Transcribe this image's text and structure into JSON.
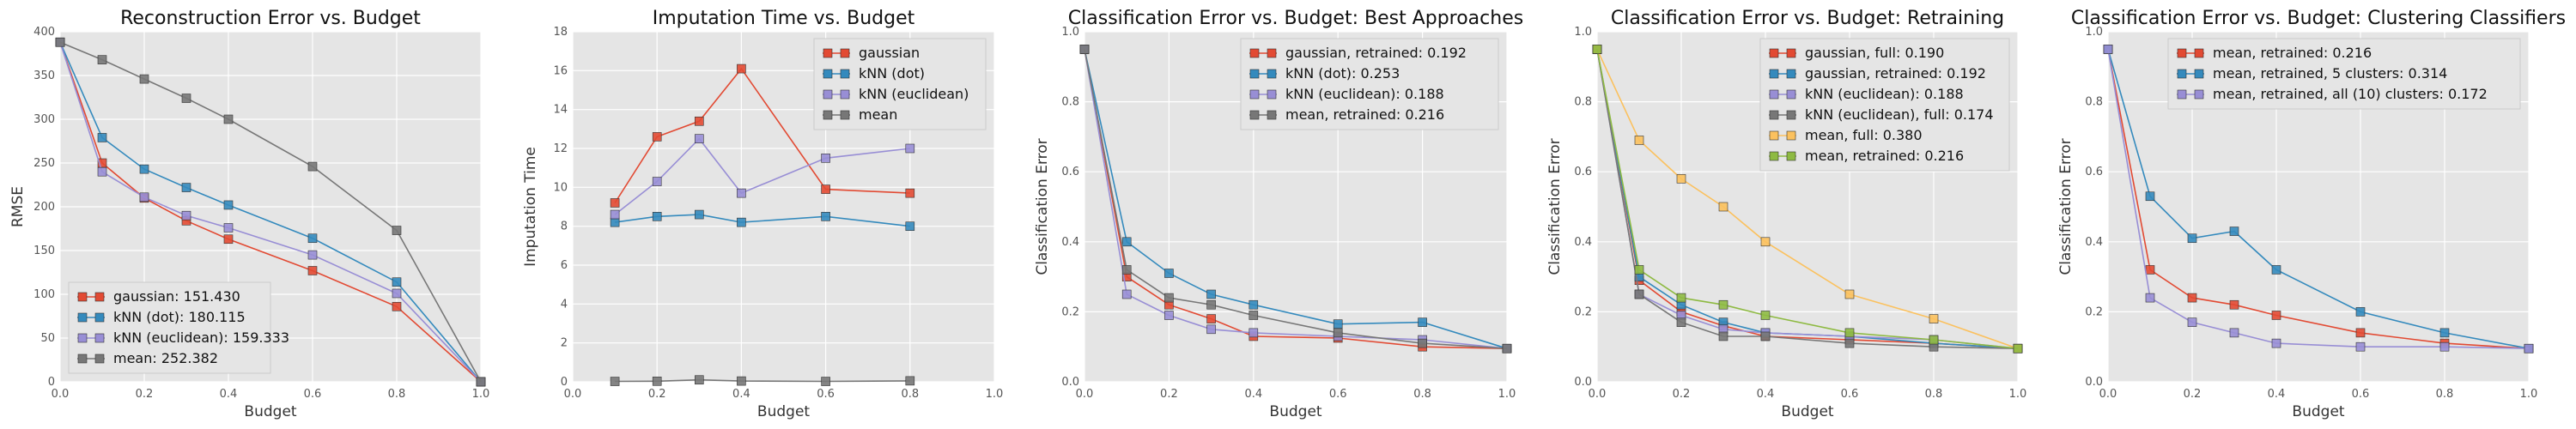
{
  "chart_data": [
    {
      "type": "line",
      "title": "Reconstruction Error vs. Budget",
      "xlabel": "Budget",
      "ylabel": "RMSE",
      "xlim": [
        0,
        1
      ],
      "ylim": [
        0,
        400
      ],
      "xticks": [
        0.0,
        0.2,
        0.4,
        0.6,
        0.8,
        1.0
      ],
      "yticks": [
        0,
        50,
        100,
        150,
        200,
        250,
        300,
        350,
        400
      ],
      "x": [
        0.0,
        0.1,
        0.2,
        0.3,
        0.4,
        0.6,
        0.8,
        1.0
      ],
      "grid": true,
      "legend_position": "lower-left",
      "series": [
        {
          "name": "gaussian: 151.430",
          "color": "#e24a33",
          "values": [
            388,
            250,
            210,
            184,
            163,
            127,
            86,
            0
          ]
        },
        {
          "name": "kNN (dot): 180.115",
          "color": "#348abd",
          "values": [
            388,
            279,
            243,
            222,
            202,
            164,
            114,
            0
          ]
        },
        {
          "name": "kNN (euclidean): 159.333",
          "color": "#988ed5",
          "values": [
            388,
            240,
            211,
            190,
            176,
            145,
            101,
            0
          ]
        },
        {
          "name": "mean: 252.382",
          "color": "#777777",
          "values": [
            388,
            368,
            346,
            324,
            300,
            246,
            173,
            0
          ]
        }
      ]
    },
    {
      "type": "line",
      "title": "Imputation Time vs. Budget",
      "xlabel": "Budget",
      "ylabel": "Imputation Time",
      "xlim": [
        0,
        1
      ],
      "ylim": [
        0,
        18
      ],
      "xticks": [
        0.0,
        0.2,
        0.4,
        0.6,
        0.8,
        1.0
      ],
      "yticks": [
        0,
        2,
        4,
        6,
        8,
        10,
        12,
        14,
        16,
        18
      ],
      "x": [
        0.1,
        0.2,
        0.3,
        0.4,
        0.6,
        0.8
      ],
      "grid": true,
      "legend_position": "top-right",
      "series": [
        {
          "name": "gaussian",
          "color": "#e24a33",
          "values": [
            9.2,
            12.6,
            13.4,
            16.1,
            9.9,
            9.7
          ]
        },
        {
          "name": "kNN (dot)",
          "color": "#348abd",
          "values": [
            8.2,
            8.5,
            8.6,
            8.2,
            8.5,
            8.0
          ]
        },
        {
          "name": "kNN (euclidean)",
          "color": "#988ed5",
          "values": [
            8.6,
            10.3,
            12.5,
            9.7,
            11.5,
            12.0
          ]
        },
        {
          "name": "mean",
          "color": "#777777",
          "values": [
            0.02,
            0.03,
            0.1,
            0.04,
            0.02,
            0.05
          ]
        }
      ]
    },
    {
      "type": "line",
      "title": "Classification Error vs. Budget: Best Approaches",
      "xlabel": "Budget",
      "ylabel": "Classification Error",
      "xlim": [
        0,
        1
      ],
      "ylim": [
        0,
        1.0
      ],
      "xticks": [
        0.0,
        0.2,
        0.4,
        0.6,
        0.8,
        1.0
      ],
      "yticks": [
        0.0,
        0.2,
        0.4,
        0.6,
        0.8,
        1.0
      ],
      "x": [
        0.0,
        0.1,
        0.2,
        0.3,
        0.4,
        0.6,
        0.8,
        1.0
      ],
      "grid": true,
      "legend_position": "top-right",
      "series": [
        {
          "name": "gaussian, retrained: 0.192",
          "color": "#e24a33",
          "values": [
            0.95,
            0.3,
            0.22,
            0.18,
            0.13,
            0.125,
            0.1,
            0.095
          ]
        },
        {
          "name": "kNN (dot): 0.253",
          "color": "#348abd",
          "values": [
            0.95,
            0.4,
            0.31,
            0.25,
            0.22,
            0.165,
            0.17,
            0.095
          ]
        },
        {
          "name": "kNN (euclidean): 0.188",
          "color": "#988ed5",
          "values": [
            0.95,
            0.25,
            0.19,
            0.15,
            0.14,
            0.13,
            0.12,
            0.095
          ]
        },
        {
          "name": "mean, retrained: 0.216",
          "color": "#777777",
          "values": [
            0.95,
            0.32,
            0.24,
            0.22,
            0.19,
            0.14,
            0.11,
            0.095
          ]
        }
      ]
    },
    {
      "type": "line",
      "title": "Classification Error vs. Budget: Retraining",
      "xlabel": "Budget",
      "ylabel": "Classification Error",
      "xlim": [
        0,
        1
      ],
      "ylim": [
        0,
        1.0
      ],
      "xticks": [
        0.0,
        0.2,
        0.4,
        0.6,
        0.8,
        1.0
      ],
      "yticks": [
        0.0,
        0.2,
        0.4,
        0.6,
        0.8,
        1.0
      ],
      "x": [
        0.0,
        0.1,
        0.2,
        0.3,
        0.4,
        0.6,
        0.8,
        1.0
      ],
      "grid": true,
      "legend_position": "top-right",
      "series": [
        {
          "name": "gaussian, full: 0.190",
          "color": "#e24a33",
          "values": [
            0.95,
            0.29,
            0.2,
            0.16,
            0.13,
            0.12,
            0.11,
            0.095
          ]
        },
        {
          "name": "gaussian, retrained: 0.192",
          "color": "#348abd",
          "values": [
            0.95,
            0.3,
            0.22,
            0.17,
            0.14,
            0.13,
            0.11,
            0.095
          ]
        },
        {
          "name": "kNN (euclidean): 0.188",
          "color": "#988ed5",
          "values": [
            0.95,
            0.25,
            0.19,
            0.15,
            0.14,
            0.13,
            0.12,
            0.095
          ]
        },
        {
          "name": "kNN (euclidean), full: 0.174",
          "color": "#777777",
          "values": [
            0.95,
            0.25,
            0.17,
            0.13,
            0.13,
            0.11,
            0.1,
            0.095
          ]
        },
        {
          "name": "mean, full: 0.380",
          "color": "#fbc15e",
          "values": [
            0.95,
            0.69,
            0.58,
            0.5,
            0.4,
            0.25,
            0.18,
            0.095
          ]
        },
        {
          "name": "mean, retrained: 0.216",
          "color": "#8eba42",
          "values": [
            0.95,
            0.32,
            0.24,
            0.22,
            0.19,
            0.14,
            0.12,
            0.095
          ]
        }
      ]
    },
    {
      "type": "line",
      "title": "Classification Error vs. Budget: Clustering Classifiers",
      "xlabel": "Budget",
      "ylabel": "Classification Error",
      "xlim": [
        0,
        1
      ],
      "ylim": [
        0,
        1.0
      ],
      "xticks": [
        0.0,
        0.2,
        0.4,
        0.6,
        0.8,
        1.0
      ],
      "yticks": [
        0.0,
        0.2,
        0.4,
        0.6,
        0.8,
        1.0
      ],
      "x": [
        0.0,
        0.1,
        0.2,
        0.3,
        0.4,
        0.6,
        0.8,
        1.0
      ],
      "grid": true,
      "legend_position": "top-right",
      "series": [
        {
          "name": "mean, retrained: 0.216",
          "color": "#e24a33",
          "values": [
            0.95,
            0.32,
            0.24,
            0.22,
            0.19,
            0.14,
            0.11,
            0.095
          ]
        },
        {
          "name": "mean, retrained, 5 clusters: 0.314",
          "color": "#348abd",
          "values": [
            0.95,
            0.53,
            0.41,
            0.43,
            0.32,
            0.2,
            0.14,
            0.095
          ]
        },
        {
          "name": "mean, retrained, all (10) clusters: 0.172",
          "color": "#988ed5",
          "values": [
            0.95,
            0.24,
            0.17,
            0.14,
            0.11,
            0.1,
            0.1,
            0.095
          ]
        }
      ]
    }
  ]
}
